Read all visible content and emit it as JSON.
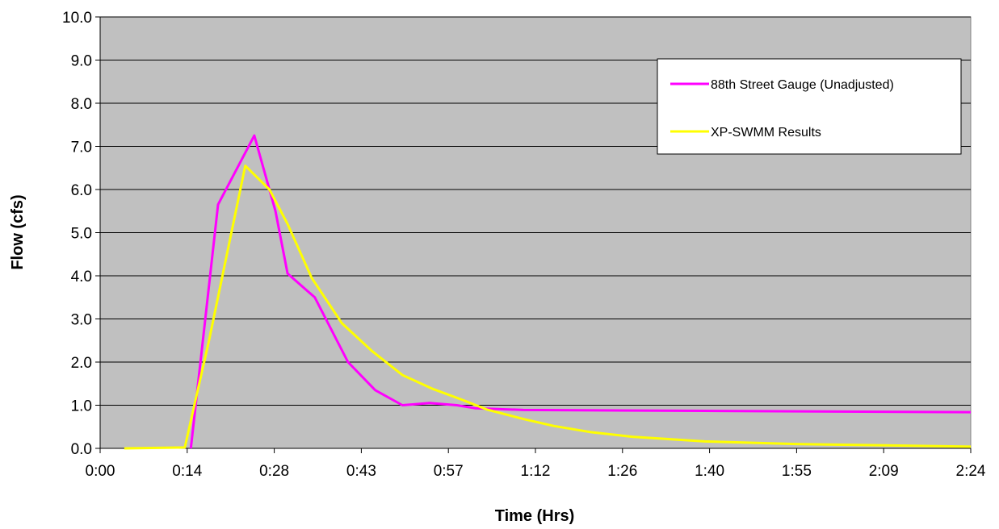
{
  "chart_data": {
    "type": "line",
    "xlabel": "Time (Hrs)",
    "ylabel": "Flow (cfs)",
    "ylim": [
      0,
      10
    ],
    "yticks": [
      "0.0",
      "1.0",
      "2.0",
      "3.0",
      "4.0",
      "5.0",
      "6.0",
      "7.0",
      "8.0",
      "9.0",
      "10.0"
    ],
    "xlim": [
      0,
      144
    ],
    "xticks": [
      {
        "label": "0:00",
        "minutes": 0
      },
      {
        "label": "0:14",
        "minutes": 14.4
      },
      {
        "label": "0:28",
        "minutes": 28.8
      },
      {
        "label": "0:43",
        "minutes": 43.2
      },
      {
        "label": "0:57",
        "minutes": 57.6
      },
      {
        "label": "1:12",
        "minutes": 72
      },
      {
        "label": "1:26",
        "minutes": 86.4
      },
      {
        "label": "1:40",
        "minutes": 100.8
      },
      {
        "label": "1:55",
        "minutes": 115.2
      },
      {
        "label": "2:09",
        "minutes": 129.6
      },
      {
        "label": "2:24",
        "minutes": 144
      }
    ],
    "grid": "horizontal",
    "legend_position": "top-right",
    "plot_background": "#c0c0c0",
    "series": [
      {
        "name": "88th Street Gauge (Unadjusted)",
        "color": "#ff00ff",
        "points": [
          [
            15.0,
            0.0
          ],
          [
            19.5,
            5.65
          ],
          [
            25.5,
            7.25
          ],
          [
            29.0,
            5.5
          ],
          [
            31.0,
            4.05
          ],
          [
            35.5,
            3.5
          ],
          [
            41.0,
            2.0
          ],
          [
            45.5,
            1.35
          ],
          [
            50.0,
            1.0
          ],
          [
            54.5,
            1.05
          ],
          [
            59.0,
            1.0
          ],
          [
            62.0,
            0.93
          ],
          [
            70.0,
            0.89
          ],
          [
            100.0,
            0.87
          ],
          [
            144.0,
            0.84
          ]
        ]
      },
      {
        "name": "XP-SWMM Results",
        "color": "#ffff00",
        "points": [
          [
            4.0,
            0.0
          ],
          [
            14.0,
            0.02
          ],
          [
            18.0,
            2.5
          ],
          [
            24.0,
            6.55
          ],
          [
            28.0,
            6.0
          ],
          [
            31.0,
            5.2
          ],
          [
            35.0,
            3.95
          ],
          [
            40.0,
            2.9
          ],
          [
            45.0,
            2.25
          ],
          [
            50.0,
            1.7
          ],
          [
            55.0,
            1.38
          ],
          [
            60.0,
            1.12
          ],
          [
            64.0,
            0.9
          ],
          [
            70.0,
            0.68
          ],
          [
            75.0,
            0.52
          ],
          [
            81.0,
            0.38
          ],
          [
            88.0,
            0.27
          ],
          [
            100.0,
            0.16
          ],
          [
            115.0,
            0.1
          ],
          [
            130.0,
            0.07
          ],
          [
            144.0,
            0.04
          ]
        ]
      }
    ]
  }
}
